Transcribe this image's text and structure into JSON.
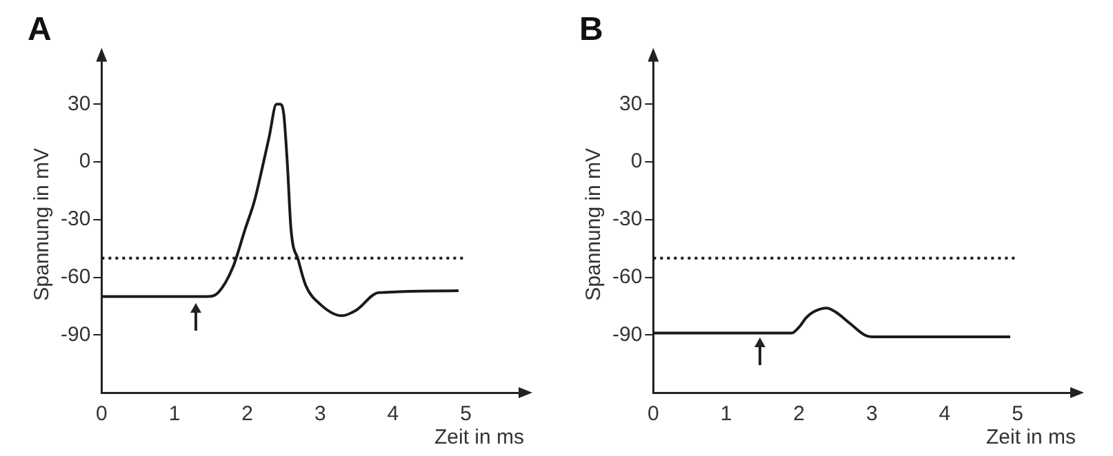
{
  "chart_data": [
    {
      "type": "line",
      "title": "A",
      "xlabel": "Zeit in ms",
      "ylabel": "Spannung in mV",
      "xlim": [
        0,
        5.8
      ],
      "ylim": [
        -120,
        55
      ],
      "xticks": [
        0,
        1,
        2,
        3,
        4,
        5
      ],
      "yticks": [
        -90,
        -60,
        -30,
        0,
        30
      ],
      "grid": false,
      "legend": false,
      "marker": "none",
      "line_style": "solid",
      "x": [
        0,
        1.45,
        1.6,
        1.8,
        1.97,
        2.1,
        2.2,
        2.3,
        2.4,
        2.45,
        2.5,
        2.55,
        2.6,
        2.7,
        2.8,
        3.0,
        3.3,
        3.5,
        3.8,
        4.9
      ],
      "series": [
        {
          "color": "#1a1a1a",
          "values": [
            -70,
            -70,
            -68,
            -55,
            -35,
            -20,
            -4,
            13,
            30,
            30,
            25,
            -1,
            -35,
            -51,
            -64,
            -74,
            -80,
            -77,
            -68,
            -67
          ]
        }
      ],
      "ref_lines": [
        {
          "axis": "y",
          "value": -50,
          "line_style": "dotted",
          "color": "#1a1a1a"
        }
      ]
    },
    {
      "type": "line",
      "title": "B",
      "xlabel": "Zeit in ms",
      "ylabel": "Spannung in mV",
      "xlim": [
        0,
        5.8
      ],
      "ylim": [
        -120,
        55
      ],
      "xticks": [
        0,
        1,
        2,
        3,
        4,
        5
      ],
      "yticks": [
        -90,
        -60,
        -30,
        0,
        30
      ],
      "grid": false,
      "legend": false,
      "marker": "none",
      "line_style": "solid",
      "x": [
        0,
        1.9,
        2.0,
        2.1,
        2.2,
        2.38,
        2.5,
        2.7,
        2.9,
        3.0,
        4.9
      ],
      "series": [
        {
          "color": "#1a1a1a",
          "values": [
            -89,
            -89,
            -86,
            -81,
            -78,
            -76,
            -78,
            -84,
            -90,
            -91,
            -91
          ]
        }
      ],
      "ref_lines": [
        {
          "axis": "y",
          "value": -50,
          "line_style": "dotted",
          "color": "#1a1a1a"
        }
      ]
    }
  ]
}
